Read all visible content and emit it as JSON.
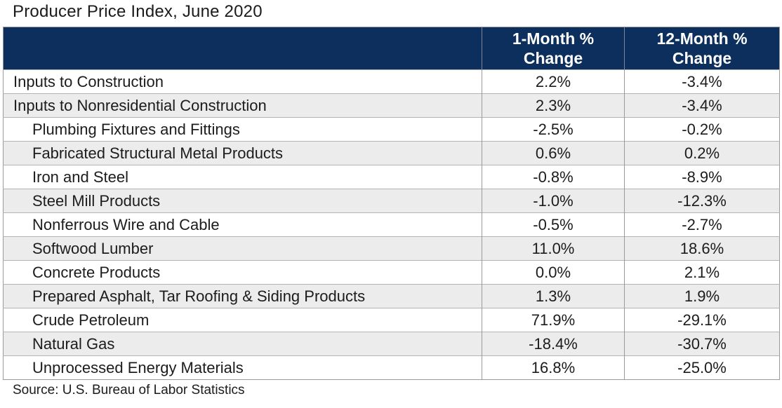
{
  "title": "Producer Price Index, June 2020",
  "source": "Source: U.S. Bureau of Labor Statistics",
  "colors": {
    "header_bg": "#0c2f5d",
    "header_text": "#ffffff",
    "row_alt_bg": "#ececec",
    "row_bg": "#ffffff",
    "border": "#9a9a9a",
    "text": "#1c1c1c"
  },
  "chart_data": {
    "type": "table",
    "title": "Producer Price Index, June 2020",
    "columns": [
      "1-Month % Change",
      "12-Month % Change"
    ],
    "rows": [
      {
        "label": "Inputs to Construction",
        "indent": false,
        "values": [
          "2.2%",
          "-3.4%"
        ]
      },
      {
        "label": "Inputs to Nonresidential Construction",
        "indent": false,
        "values": [
          "2.3%",
          "-3.4%"
        ]
      },
      {
        "label": "Plumbing Fixtures and Fittings",
        "indent": true,
        "values": [
          "-2.5%",
          "-0.2%"
        ]
      },
      {
        "label": "Fabricated Structural Metal Products",
        "indent": true,
        "values": [
          "0.6%",
          "0.2%"
        ]
      },
      {
        "label": "Iron and Steel",
        "indent": true,
        "values": [
          "-0.8%",
          "-8.9%"
        ]
      },
      {
        "label": "Steel Mill Products",
        "indent": true,
        "values": [
          "-1.0%",
          "-12.3%"
        ]
      },
      {
        "label": "Nonferrous Wire and Cable",
        "indent": true,
        "values": [
          "-0.5%",
          "-2.7%"
        ]
      },
      {
        "label": "Softwood Lumber",
        "indent": true,
        "values": [
          "11.0%",
          "18.6%"
        ]
      },
      {
        "label": "Concrete Products",
        "indent": true,
        "values": [
          "0.0%",
          "2.1%"
        ]
      },
      {
        "label": "Prepared Asphalt, Tar Roofing & Siding Products",
        "indent": true,
        "values": [
          "1.3%",
          "1.9%"
        ]
      },
      {
        "label": "Crude Petroleum",
        "indent": true,
        "values": [
          "71.9%",
          "-29.1%"
        ]
      },
      {
        "label": "Natural Gas",
        "indent": true,
        "values": [
          "-18.4%",
          "-30.7%"
        ]
      },
      {
        "label": "Unprocessed Energy Materials",
        "indent": true,
        "values": [
          "16.8%",
          "-25.0%"
        ]
      }
    ],
    "source": "Source: U.S. Bureau of Labor Statistics",
    "layout": {
      "legend": "none",
      "grid": "table-borders",
      "header_rows": 1,
      "data_rows": 13
    }
  }
}
